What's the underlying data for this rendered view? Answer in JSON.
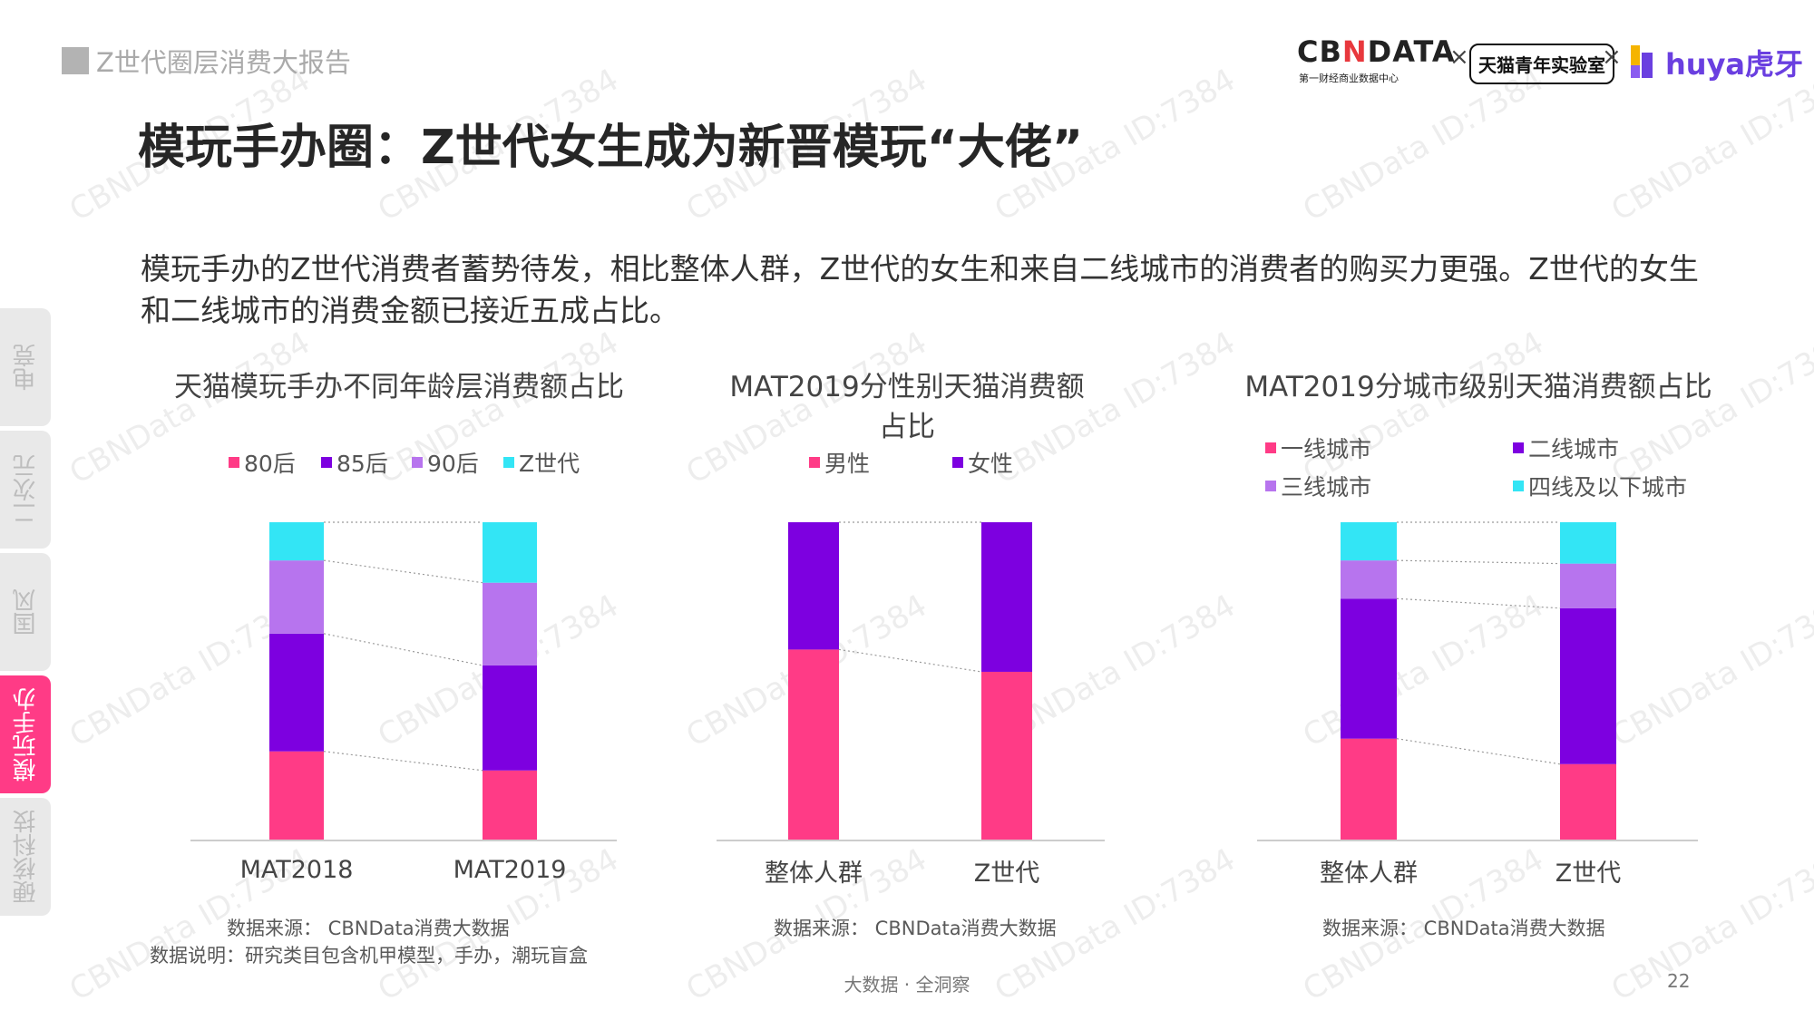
{
  "header": {
    "report_title": "Z世代圈层消费大报告",
    "page_title": "模玩手办圈：Z世代女生成为新晋模玩“大佬”",
    "description": "模玩手办的Z世代消费者蓄势待发，相比整体人群，Z世代的女生和来自二线城市的消费者的购买力更强。Z世代的女生和二线城市的消费金额已接近五成占比。"
  },
  "logos": {
    "cbndata": "CBNDATA",
    "cbndata_sub": "第一财经商业数据中心",
    "times": "×",
    "tmall_lab": "天猫青年实验室",
    "huya": "huya虎牙"
  },
  "sidebar": {
    "tabs": [
      {
        "label": "电竞",
        "active": false
      },
      {
        "label": "二次元",
        "active": false
      },
      {
        "label": "国风",
        "active": false
      },
      {
        "label": "模玩手办",
        "active": true
      },
      {
        "label": "硬核科技",
        "active": false
      }
    ]
  },
  "watermark": "CBNData ID:7384",
  "colors": {
    "pink": "#ff3b86",
    "purple": "#7d00e0",
    "lavender": "#b774ee",
    "cyan": "#33e5f5",
    "axis": "#cccccc"
  },
  "chart_data": [
    {
      "type": "bar",
      "stacked": true,
      "normalized": true,
      "title": "天猫模玩手办不同年龄层消费额占比",
      "categories": [
        "MAT2018",
        "MAT2019"
      ],
      "series": [
        {
          "name": "80后",
          "color": "#ff3b86",
          "values": [
            0.28,
            0.22
          ]
        },
        {
          "name": "85后",
          "color": "#7d00e0",
          "values": [
            0.37,
            0.33
          ]
        },
        {
          "name": "90后",
          "color": "#b774ee",
          "values": [
            0.23,
            0.26
          ]
        },
        {
          "name": "Z世代",
          "color": "#33e5f5",
          "values": [
            0.12,
            0.19
          ]
        }
      ],
      "legend": "top",
      "source": "数据来源： CBNData消费大数据",
      "note": "数据说明：研究类目包含机甲模型，手办，潮玩盲盒"
    },
    {
      "type": "bar",
      "stacked": true,
      "normalized": true,
      "title": "MAT2019分性别天猫消费额占比",
      "categories": [
        "整体人群",
        "Z世代"
      ],
      "series": [
        {
          "name": "男性",
          "color": "#ff3b86",
          "values": [
            0.6,
            0.53
          ]
        },
        {
          "name": "女性",
          "color": "#7d00e0",
          "values": [
            0.4,
            0.47
          ]
        }
      ],
      "legend": "top",
      "source": "数据来源： CBNData消费大数据"
    },
    {
      "type": "bar",
      "stacked": true,
      "normalized": true,
      "title": "MAT2019分城市级别天猫消费额占比",
      "categories": [
        "整体人群",
        "Z世代"
      ],
      "series": [
        {
          "name": "一线城市",
          "color": "#ff3b86",
          "values": [
            0.32,
            0.24
          ]
        },
        {
          "name": "二线城市",
          "color": "#7d00e0",
          "values": [
            0.44,
            0.49
          ]
        },
        {
          "name": "三线城市",
          "color": "#b774ee",
          "values": [
            0.12,
            0.14
          ]
        },
        {
          "name": "四线及以下城市",
          "color": "#33e5f5",
          "values": [
            0.12,
            0.13
          ]
        }
      ],
      "legend": "top",
      "source": "数据来源： CBNData消费大数据"
    }
  ],
  "footer": {
    "tagline": "大数据 · 全洞察",
    "page_number": "22"
  }
}
